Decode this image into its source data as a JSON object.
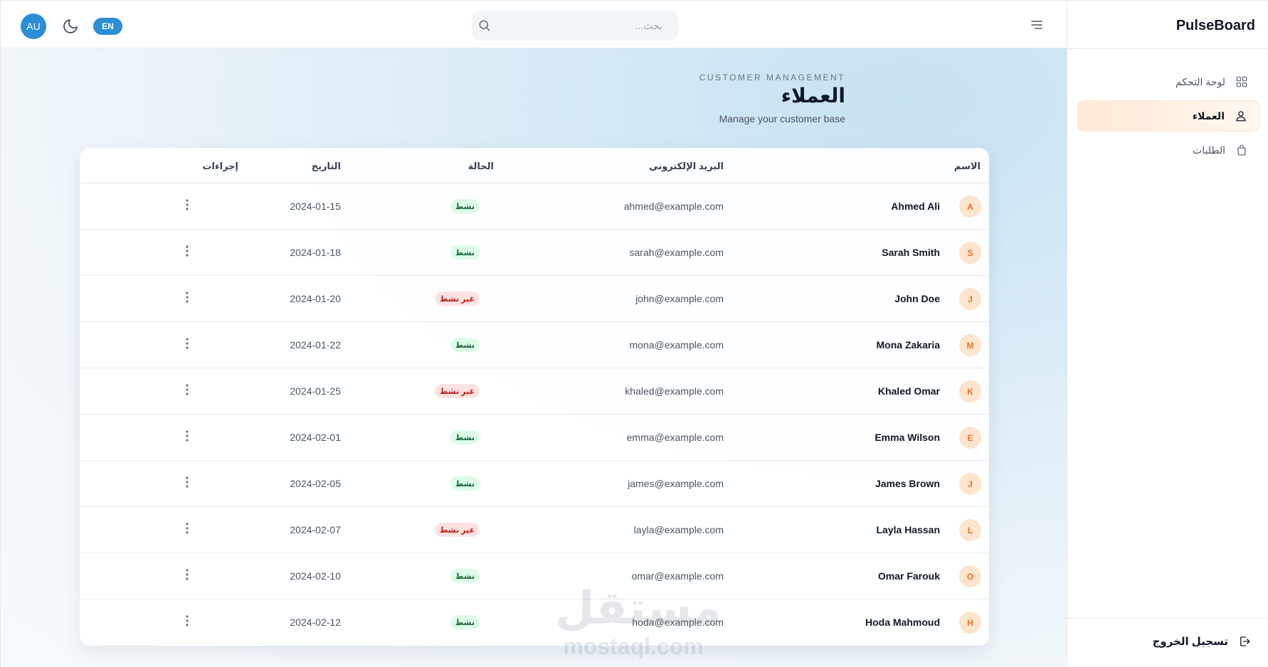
{
  "brand": "PulseBoard",
  "topbar": {
    "user_initials": "AU",
    "lang_label": "EN",
    "search_placeholder": "بحث..."
  },
  "sidebar": {
    "items": [
      {
        "label": "لوحة التحكم",
        "icon": "grid-icon",
        "active": false
      },
      {
        "label": "العملاء",
        "icon": "users-icon",
        "active": true
      },
      {
        "label": "الطلبات",
        "icon": "shopping-bag-icon",
        "active": false
      }
    ],
    "logout_label": "تسجيل الخروج"
  },
  "page": {
    "eyebrow": "CUSTOMER MANAGEMENT",
    "title": "العملاء",
    "subtitle": "Manage your customer base"
  },
  "table": {
    "headers": {
      "name": "الاسم",
      "email": "البريد الإلكتروني",
      "status": "الحالة",
      "date": "التاريخ",
      "actions": "إجراءات"
    },
    "rows": [
      {
        "initial": "A",
        "name": "Ahmed Ali",
        "email": "ahmed@example.com",
        "status": "نشط",
        "active": true,
        "date": "2024-01-15"
      },
      {
        "initial": "S",
        "name": "Sarah Smith",
        "email": "sarah@example.com",
        "status": "نشط",
        "active": true,
        "date": "2024-01-18"
      },
      {
        "initial": "J",
        "name": "John Doe",
        "email": "john@example.com",
        "status": "غير نشط",
        "active": false,
        "date": "2024-01-20"
      },
      {
        "initial": "M",
        "name": "Mona Zakaria",
        "email": "mona@example.com",
        "status": "نشط",
        "active": true,
        "date": "2024-01-22"
      },
      {
        "initial": "K",
        "name": "Khaled Omar",
        "email": "khaled@example.com",
        "status": "غير نشط",
        "active": false,
        "date": "2024-01-25"
      },
      {
        "initial": "E",
        "name": "Emma Wilson",
        "email": "emma@example.com",
        "status": "نشط",
        "active": true,
        "date": "2024-02-01"
      },
      {
        "initial": "J",
        "name": "James Brown",
        "email": "james@example.com",
        "status": "نشط",
        "active": true,
        "date": "2024-02-05"
      },
      {
        "initial": "L",
        "name": "Layla Hassan",
        "email": "layla@example.com",
        "status": "غير نشط",
        "active": false,
        "date": "2024-02-07"
      },
      {
        "initial": "O",
        "name": "Omar Farouk",
        "email": "omar@example.com",
        "status": "نشط",
        "active": true,
        "date": "2024-02-10"
      },
      {
        "initial": "H",
        "name": "Hoda Mahmoud",
        "email": "hoda@example.com",
        "status": "نشط",
        "active": true,
        "date": "2024-02-12"
      }
    ]
  },
  "watermark": {
    "arabic": "مستقل",
    "latin": "mostaql.com"
  },
  "colors": {
    "accent": "#2b8fd6",
    "active_nav_bg": "#fde9d6",
    "avatar_bg": "#fde4cc",
    "avatar_text": "#e8722a",
    "status_active_bg": "#dcfce7",
    "status_active_text": "#166534",
    "status_inactive_bg": "#fee2e2",
    "status_inactive_text": "#b91c1c"
  }
}
